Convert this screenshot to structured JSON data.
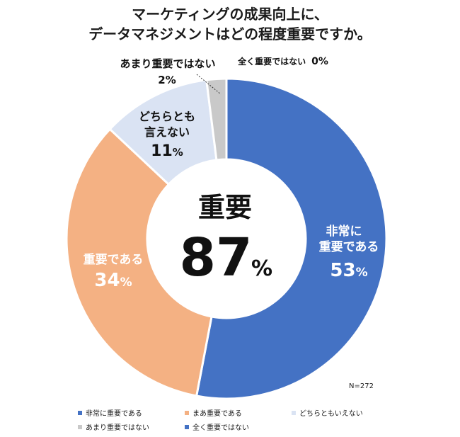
{
  "title": {
    "line1": "マーケティングの成果向上に、",
    "line2": "データマネジメントはどの程度重要ですか。"
  },
  "center": {
    "label": "重要",
    "value": "87",
    "unit": "%"
  },
  "note": "N=272",
  "chart_data": {
    "type": "pie",
    "variant": "donut",
    "unit": "%",
    "n": 272,
    "slices": [
      {
        "label": "非常に重要である",
        "value": 53,
        "color": "#4472C4"
      },
      {
        "label": "まあ重要である",
        "value": 34,
        "color": "#F4B183"
      },
      {
        "label": "どちらともいえない",
        "value": 11,
        "color": "#DAE3F3"
      },
      {
        "label": "あまり重要ではない",
        "value": 2,
        "color": "#C9C9C9"
      },
      {
        "label": "全く重要ではない",
        "value": 0,
        "color": "#4472C4"
      }
    ],
    "slice_labels": [
      {
        "lines": [
          "非常に",
          "重要である"
        ],
        "pct": "53",
        "unit": "%"
      },
      {
        "lines": [
          "重要である"
        ],
        "pct": "34",
        "unit": "%"
      },
      {
        "lines": [
          "どちらとも",
          "言えない"
        ],
        "pct": "11",
        "unit": "%"
      },
      {
        "lines": [
          "あまり重要ではない"
        ],
        "pct": "2",
        "unit": "%"
      },
      {
        "lines": [
          "全く重要ではない"
        ],
        "pct": "0",
        "unit": "%"
      }
    ],
    "legend_position": "bottom"
  }
}
